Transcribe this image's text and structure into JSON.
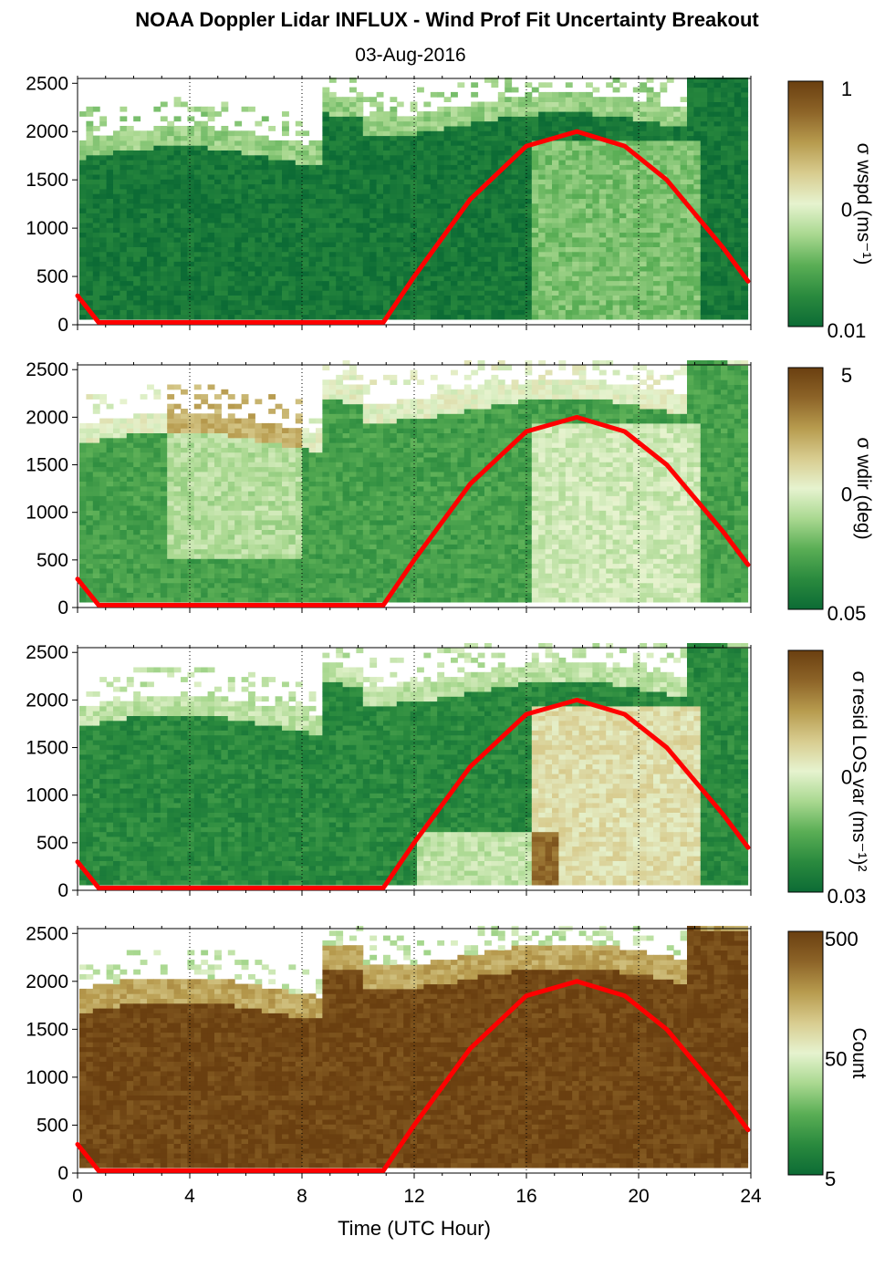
{
  "title": "NOAA Doppler Lidar INFLUX - Wind Prof Fit Uncertainty Breakout",
  "subtitle": "03-Aug-2016",
  "chart_data": [
    {
      "type": "heatmap",
      "colorbar_label": "σ wspd (ms⁻¹)",
      "colorbar_ticks": [
        "1",
        "0",
        "0.01"
      ],
      "dominant_level": 0.05,
      "x_ticks": [
        "0",
        "4",
        "8",
        "12",
        "16",
        "20",
        "24"
      ],
      "y_ticks": [
        "0",
        "500",
        "1000",
        "1500",
        "2000",
        "2500"
      ],
      "xlim": [
        0,
        24
      ],
      "ylim": [
        0,
        2550
      ]
    },
    {
      "type": "heatmap",
      "colorbar_label": "σ wdir (deg)",
      "colorbar_ticks": [
        "5",
        "0",
        "0.05"
      ],
      "dominant_level": 0.2,
      "x_ticks": [
        "0",
        "4",
        "8",
        "12",
        "16",
        "20",
        "24"
      ],
      "y_ticks": [
        "0",
        "500",
        "1000",
        "1500",
        "2000",
        "2500"
      ],
      "xlim": [
        0,
        24
      ],
      "ylim": [
        0,
        2550
      ]
    },
    {
      "type": "heatmap",
      "colorbar_label": "σ resid LOS var (ms⁻¹)²",
      "colorbar_ticks": [
        "0",
        "0.03"
      ],
      "dominant_level": 0.12,
      "x_ticks": [
        "0",
        "4",
        "8",
        "12",
        "16",
        "20",
        "24"
      ],
      "y_ticks": [
        "0",
        "500",
        "1000",
        "1500",
        "2000",
        "2500"
      ],
      "xlim": [
        0,
        24
      ],
      "ylim": [
        0,
        2550
      ]
    },
    {
      "type": "heatmap",
      "colorbar_label": "Count",
      "colorbar_ticks": [
        "500",
        "50",
        "5"
      ],
      "dominant_level": 0.97,
      "x_ticks": [
        "0",
        "4",
        "8",
        "12",
        "16",
        "20",
        "24"
      ],
      "y_ticks": [
        "0",
        "500",
        "1000",
        "1500",
        "2000",
        "2500"
      ],
      "xlim": [
        0,
        24
      ],
      "ylim": [
        0,
        2550
      ],
      "xlabel": "Time (UTC Hour)"
    }
  ],
  "sun_curve": {
    "color": "#ff0000",
    "points": [
      [
        0,
        300
      ],
      [
        0.75,
        25
      ],
      [
        10.9,
        25
      ],
      [
        12,
        500
      ],
      [
        14,
        1300
      ],
      [
        16,
        1850
      ],
      [
        17.8,
        2000
      ],
      [
        19.5,
        1850
      ],
      [
        21,
        1500
      ],
      [
        23,
        800
      ],
      [
        23.9,
        450
      ]
    ]
  },
  "colormap": [
    "#0c6b35",
    "#2a8a3e",
    "#5aae55",
    "#a9d890",
    "#e6f3cf",
    "#d8cc8f",
    "#b79b4e",
    "#8d6428",
    "#6a3f10"
  ]
}
